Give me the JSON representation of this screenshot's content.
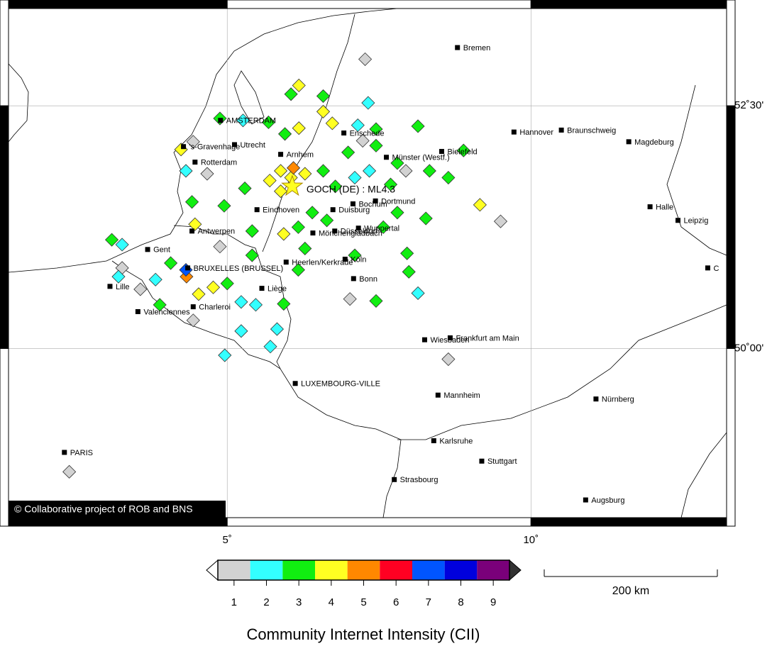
{
  "map": {
    "xlim": [
      1.4,
      13.22
    ],
    "ylim": [
      48.17,
      53.59
    ],
    "xticks": [
      {
        "value": 5,
        "label": "5˚"
      },
      {
        "value": 10,
        "label": "10˚"
      }
    ],
    "yticks": [
      {
        "value": 52.5,
        "label": "52˚30'"
      },
      {
        "value": 50,
        "label": "50˚00'"
      }
    ],
    "copyright": "© Collaborative project of ROB and BNS",
    "epicenter": {
      "label": "GOCH (DE) : ML4.3",
      "lon": 6.07,
      "lat": 51.67
    },
    "cities": [
      {
        "name": "Bremen",
        "lon": 8.79,
        "lat": 53.1
      },
      {
        "name": "Hannover",
        "lon": 9.72,
        "lat": 52.23
      },
      {
        "name": "Braunschweig",
        "lon": 10.5,
        "lat": 52.25
      },
      {
        "name": "Magdeburg",
        "lon": 11.61,
        "lat": 52.13
      },
      {
        "name": "Halle",
        "lon": 11.96,
        "lat": 51.46
      },
      {
        "name": "Leipzig",
        "lon": 12.42,
        "lat": 51.32
      },
      {
        "name": "C",
        "lon": 12.91,
        "lat": 50.83
      },
      {
        "name": "Bielefeld",
        "lon": 8.53,
        "lat": 52.03
      },
      {
        "name": "Enschede",
        "lon": 6.92,
        "lat": 52.22
      },
      {
        "name": "Münster (Westf.)",
        "lon": 7.62,
        "lat": 51.97
      },
      {
        "name": "AMSTERDAM",
        "lon": 4.89,
        "lat": 52.35
      },
      {
        "name": "Utrecht",
        "lon": 5.12,
        "lat": 52.1
      },
      {
        "name": "'s-Gravenhage",
        "lon": 4.28,
        "lat": 52.08
      },
      {
        "name": "Rotterdam",
        "lon": 4.47,
        "lat": 51.92
      },
      {
        "name": "Arnhem",
        "lon": 5.88,
        "lat": 52.0
      },
      {
        "name": "Eindhoven",
        "lon": 5.49,
        "lat": 51.43
      },
      {
        "name": "Antwerpen",
        "lon": 4.42,
        "lat": 51.21
      },
      {
        "name": "Gent",
        "lon": 3.69,
        "lat": 51.02
      },
      {
        "name": "BRUXELLES (BRUSSEL)",
        "lon": 4.35,
        "lat": 50.83
      },
      {
        "name": "Lille",
        "lon": 3.07,
        "lat": 50.64
      },
      {
        "name": "Valenciennes",
        "lon": 3.53,
        "lat": 50.38
      },
      {
        "name": "Charleroi",
        "lon": 4.44,
        "lat": 50.43
      },
      {
        "name": "Liège",
        "lon": 5.57,
        "lat": 50.62
      },
      {
        "name": "Heerlen/Kerkrade",
        "lon": 5.97,
        "lat": 50.89
      },
      {
        "name": "Köln",
        "lon": 6.94,
        "lat": 50.92
      },
      {
        "name": "Bonn",
        "lon": 7.08,
        "lat": 50.72
      },
      {
        "name": "Duisburg",
        "lon": 6.74,
        "lat": 51.43
      },
      {
        "name": "Dortmund",
        "lon": 7.44,
        "lat": 51.52
      },
      {
        "name": "Bochum",
        "lon": 7.07,
        "lat": 51.49
      },
      {
        "name": "Düsseldorf",
        "lon": 6.77,
        "lat": 51.21
      },
      {
        "name": "Wuppertal",
        "lon": 7.16,
        "lat": 51.24
      },
      {
        "name": "Mönchengladbach",
        "lon": 6.41,
        "lat": 51.19
      },
      {
        "name": "Wiesbaden",
        "lon": 8.25,
        "lat": 50.09
      },
      {
        "name": "Frankfurt am Main",
        "lon": 8.67,
        "lat": 50.11
      },
      {
        "name": "LUXEMBOURG-VILLE",
        "lon": 6.12,
        "lat": 49.64
      },
      {
        "name": "Mannheim",
        "lon": 8.47,
        "lat": 49.52
      },
      {
        "name": "Nürnberg",
        "lon": 11.07,
        "lat": 49.48
      },
      {
        "name": "Karlsruhe",
        "lon": 8.4,
        "lat": 49.05
      },
      {
        "name": "Stuttgart",
        "lon": 9.19,
        "lat": 48.84
      },
      {
        "name": "Strasbourg",
        "lon": 7.75,
        "lat": 48.65
      },
      {
        "name": "Augsburg",
        "lon": 10.9,
        "lat": 48.44
      },
      {
        "name": "PARIS",
        "lon": 2.32,
        "lat": 48.93
      }
    ],
    "points": [
      {
        "lon": 7.27,
        "lat": 52.98,
        "cii": 1
      },
      {
        "lon": 6.18,
        "lat": 52.71,
        "cii": 4
      },
      {
        "lon": 6.05,
        "lat": 52.62,
        "cii": 3
      },
      {
        "lon": 6.58,
        "lat": 52.6,
        "cii": 3
      },
      {
        "lon": 7.32,
        "lat": 52.53,
        "cii": 2
      },
      {
        "lon": 4.88,
        "lat": 52.37,
        "cii": 3
      },
      {
        "lon": 5.26,
        "lat": 52.35,
        "cii": 2
      },
      {
        "lon": 5.68,
        "lat": 52.33,
        "cii": 3
      },
      {
        "lon": 5.95,
        "lat": 52.21,
        "cii": 3
      },
      {
        "lon": 6.18,
        "lat": 52.27,
        "cii": 4
      },
      {
        "lon": 6.58,
        "lat": 52.44,
        "cii": 4
      },
      {
        "lon": 6.73,
        "lat": 52.32,
        "cii": 4
      },
      {
        "lon": 7.15,
        "lat": 52.3,
        "cii": 2
      },
      {
        "lon": 7.45,
        "lat": 52.26,
        "cii": 3
      },
      {
        "lon": 8.14,
        "lat": 52.29,
        "cii": 3
      },
      {
        "lon": 7.23,
        "lat": 52.14,
        "cii": 1
      },
      {
        "lon": 6.99,
        "lat": 52.02,
        "cii": 3
      },
      {
        "lon": 7.45,
        "lat": 52.09,
        "cii": 3
      },
      {
        "lon": 7.8,
        "lat": 51.91,
        "cii": 3
      },
      {
        "lon": 8.33,
        "lat": 51.83,
        "cii": 3
      },
      {
        "lon": 8.64,
        "lat": 51.76,
        "cii": 3
      },
      {
        "lon": 7.94,
        "lat": 51.83,
        "cii": 1
      },
      {
        "lon": 8.89,
        "lat": 52.04,
        "cii": 3
      },
      {
        "lon": 9.16,
        "lat": 51.48,
        "cii": 4
      },
      {
        "lon": 9.5,
        "lat": 51.31,
        "cii": 1
      },
      {
        "lon": 4.24,
        "lat": 52.05,
        "cii": 4
      },
      {
        "lon": 4.32,
        "lat": 51.83,
        "cii": 2
      },
      {
        "lon": 4.67,
        "lat": 51.8,
        "cii": 1
      },
      {
        "lon": 4.42,
        "lat": 51.51,
        "cii": 3
      },
      {
        "lon": 4.95,
        "lat": 51.47,
        "cii": 3
      },
      {
        "lon": 5.29,
        "lat": 51.65,
        "cii": 3
      },
      {
        "lon": 5.88,
        "lat": 51.83,
        "cii": 4
      },
      {
        "lon": 6.05,
        "lat": 51.76,
        "cii": 4
      },
      {
        "lon": 6.28,
        "lat": 51.8,
        "cii": 4
      },
      {
        "lon": 6.58,
        "lat": 51.83,
        "cii": 3
      },
      {
        "lon": 6.78,
        "lat": 51.67,
        "cii": 3
      },
      {
        "lon": 7.1,
        "lat": 51.76,
        "cii": 2
      },
      {
        "lon": 7.34,
        "lat": 51.83,
        "cii": 2
      },
      {
        "lon": 7.69,
        "lat": 51.69,
        "cii": 3
      },
      {
        "lon": 7.8,
        "lat": 51.4,
        "cii": 3
      },
      {
        "lon": 8.27,
        "lat": 51.34,
        "cii": 3
      },
      {
        "lon": 7.57,
        "lat": 51.25,
        "cii": 3
      },
      {
        "lon": 7.96,
        "lat": 50.98,
        "cii": 3
      },
      {
        "lon": 7.99,
        "lat": 50.79,
        "cii": 3
      },
      {
        "lon": 8.14,
        "lat": 50.57,
        "cii": 2
      },
      {
        "lon": 7.02,
        "lat": 50.51,
        "cii": 1
      },
      {
        "lon": 7.45,
        "lat": 50.49,
        "cii": 3
      },
      {
        "lon": 6.4,
        "lat": 51.4,
        "cii": 3
      },
      {
        "lon": 6.64,
        "lat": 51.32,
        "cii": 3
      },
      {
        "lon": 6.17,
        "lat": 51.25,
        "cii": 3
      },
      {
        "lon": 5.93,
        "lat": 51.18,
        "cii": 4
      },
      {
        "lon": 6.28,
        "lat": 51.03,
        "cii": 3
      },
      {
        "lon": 7.1,
        "lat": 50.96,
        "cii": 3
      },
      {
        "lon": 6.09,
        "lat": 51.86,
        "cii": 5
      },
      {
        "lon": 5.41,
        "lat": 50.96,
        "cii": 3
      },
      {
        "lon": 5.0,
        "lat": 50.67,
        "cii": 3
      },
      {
        "lon": 5.23,
        "lat": 50.48,
        "cii": 2
      },
      {
        "lon": 4.77,
        "lat": 50.63,
        "cii": 4
      },
      {
        "lon": 4.53,
        "lat": 50.56,
        "cii": 4
      },
      {
        "lon": 4.33,
        "lat": 50.74,
        "cii": 5
      },
      {
        "lon": 4.32,
        "lat": 50.81,
        "cii": 7
      },
      {
        "lon": 4.07,
        "lat": 50.88,
        "cii": 3
      },
      {
        "lon": 3.82,
        "lat": 50.71,
        "cii": 2
      },
      {
        "lon": 3.57,
        "lat": 50.61,
        "cii": 1
      },
      {
        "lon": 3.27,
        "lat": 50.83,
        "cii": 1
      },
      {
        "lon": 3.21,
        "lat": 50.74,
        "cii": 2
      },
      {
        "lon": 3.1,
        "lat": 51.12,
        "cii": 3
      },
      {
        "lon": 3.27,
        "lat": 51.07,
        "cii": 2
      },
      {
        "lon": 3.89,
        "lat": 50.45,
        "cii": 3
      },
      {
        "lon": 4.44,
        "lat": 50.29,
        "cii": 1
      },
      {
        "lon": 5.23,
        "lat": 50.18,
        "cii": 2
      },
      {
        "lon": 5.82,
        "lat": 50.2,
        "cii": 2
      },
      {
        "lon": 5.71,
        "lat": 50.02,
        "cii": 2
      },
      {
        "lon": 4.96,
        "lat": 49.93,
        "cii": 2
      },
      {
        "lon": 5.47,
        "lat": 50.45,
        "cii": 2
      },
      {
        "lon": 5.93,
        "lat": 50.46,
        "cii": 3
      },
      {
        "lon": 8.64,
        "lat": 49.89,
        "cii": 1
      },
      {
        "lon": 2.4,
        "lat": 48.73,
        "cii": 1
      },
      {
        "lon": 4.88,
        "lat": 51.05,
        "cii": 1
      },
      {
        "lon": 4.47,
        "lat": 51.28,
        "cii": 4
      },
      {
        "lon": 4.44,
        "lat": 52.13,
        "cii": 1
      },
      {
        "lon": 5.41,
        "lat": 51.21,
        "cii": 3
      },
      {
        "lon": 6.17,
        "lat": 50.81,
        "cii": 3
      },
      {
        "lon": 5.7,
        "lat": 51.73,
        "cii": 4
      },
      {
        "lon": 5.88,
        "lat": 51.62,
        "cii": 4
      }
    ]
  },
  "colorbar": {
    "ticks": [
      1,
      2,
      3,
      4,
      5,
      6,
      7,
      8,
      9
    ],
    "colors": [
      "#d2d2d2",
      "#33ffff",
      "#11ee11",
      "#ffff22",
      "#ff8800",
      "#ff0022",
      "#0055ff",
      "#0000dd",
      "#7a007a"
    ],
    "title": "Community Internet Intensity (CII)"
  },
  "scale_bar": {
    "label": "200 km"
  }
}
